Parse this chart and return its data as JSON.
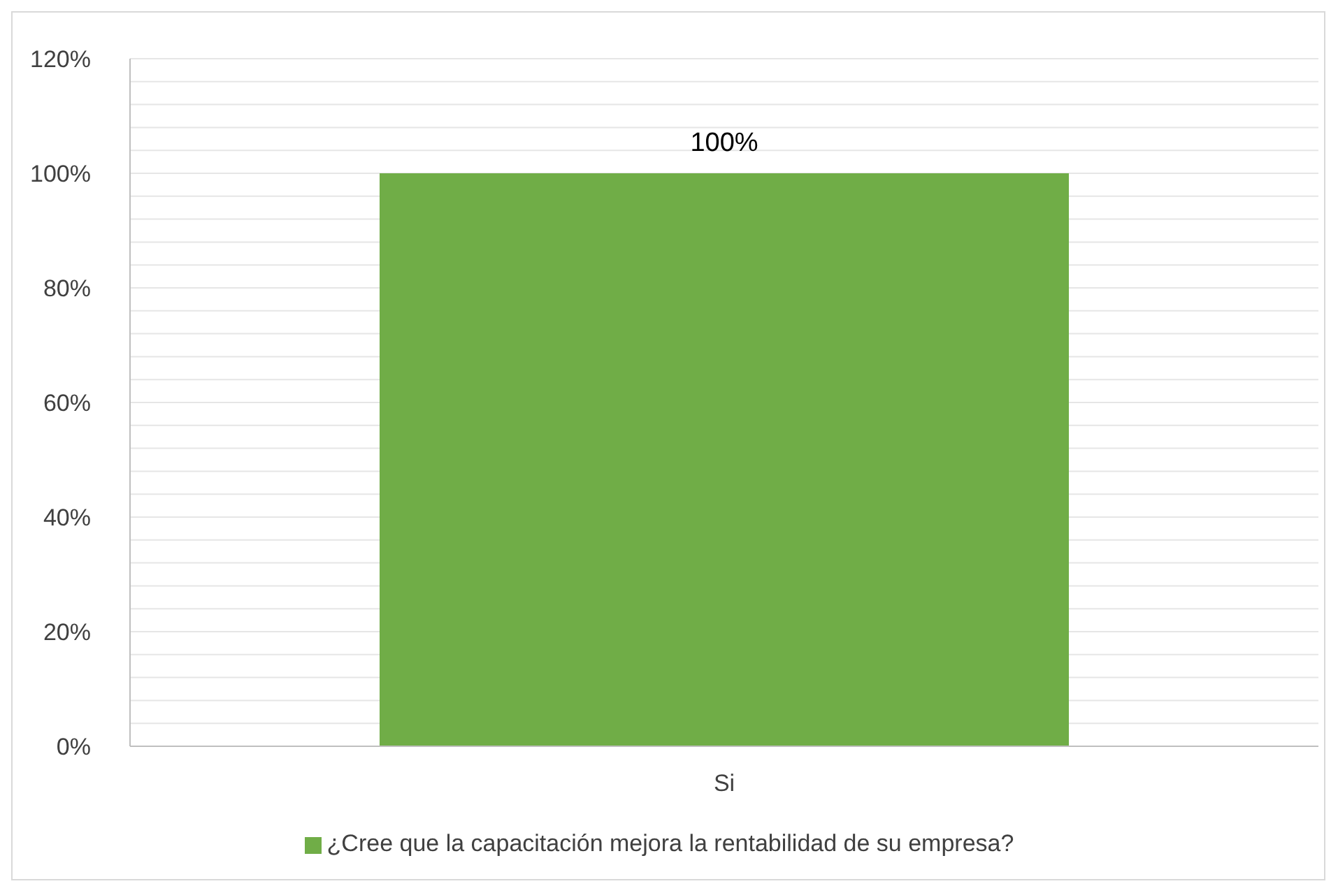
{
  "chart_data": {
    "type": "bar",
    "categories": [
      "Si"
    ],
    "series": [
      {
        "name": "¿Cree que la capacitación mejora la rentabilidad de su empresa?",
        "color": "#70ad47",
        "values": [
          100
        ],
        "value_labels": [
          "100%"
        ]
      }
    ],
    "ylim": [
      0,
      120
    ],
    "yticks": [
      {
        "value": 0,
        "label": "0%"
      },
      {
        "value": 4,
        "label": null
      },
      {
        "value": 8,
        "label": null
      },
      {
        "value": 12,
        "label": null
      },
      {
        "value": 16,
        "label": null
      },
      {
        "value": 20,
        "label": "20%"
      },
      {
        "value": 24,
        "label": null
      },
      {
        "value": 28,
        "label": null
      },
      {
        "value": 32,
        "label": null
      },
      {
        "value": 36,
        "label": null
      },
      {
        "value": 40,
        "label": "40%"
      },
      {
        "value": 44,
        "label": null
      },
      {
        "value": 48,
        "label": null
      },
      {
        "value": 52,
        "label": null
      },
      {
        "value": 56,
        "label": null
      },
      {
        "value": 60,
        "label": "60%"
      },
      {
        "value": 64,
        "label": null
      },
      {
        "value": 68,
        "label": null
      },
      {
        "value": 72,
        "label": null
      },
      {
        "value": 76,
        "label": null
      },
      {
        "value": 80,
        "label": "80%"
      },
      {
        "value": 84,
        "label": null
      },
      {
        "value": 88,
        "label": null
      },
      {
        "value": 92,
        "label": null
      },
      {
        "value": 96,
        "label": null
      },
      {
        "value": 100,
        "label": "100%"
      },
      {
        "value": 104,
        "label": null
      },
      {
        "value": 108,
        "label": null
      },
      {
        "value": 112,
        "label": null
      },
      {
        "value": 116,
        "label": null
      },
      {
        "value": 120,
        "label": "120%"
      }
    ],
    "grid": "y",
    "legend": "bottom"
  }
}
